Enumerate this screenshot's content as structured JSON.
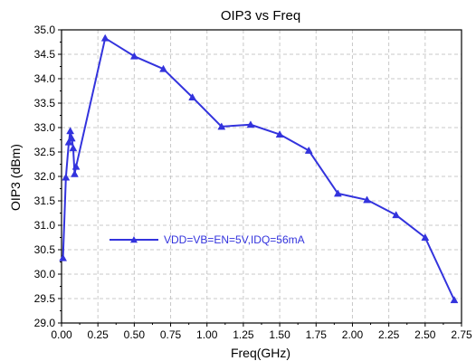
{
  "chart_data": {
    "type": "line",
    "title": "OIP3 vs Freq",
    "xlabel": "Freq(GHz)",
    "ylabel": "OIP3 (dBm)",
    "xlim": [
      0,
      2.75
    ],
    "ylim": [
      29.0,
      35.0
    ],
    "x_ticks": [
      "0.00",
      "0.25",
      "0.50",
      "0.75",
      "1.00",
      "1.25",
      "1.50",
      "1.75",
      "2.00",
      "2.25",
      "2.50",
      "2.75"
    ],
    "y_ticks": [
      "29.0",
      "29.5",
      "30.0",
      "30.5",
      "31.0",
      "31.5",
      "32.0",
      "32.5",
      "33.0",
      "33.5",
      "34.0",
      "34.5",
      "35.0"
    ],
    "grid": true,
    "legend_position": "left-middle",
    "series": [
      {
        "name": "VDD=VB=EN=5V,IDQ=56mA",
        "color": "#3333dd",
        "marker": "triangle-up",
        "points": [
          {
            "x": 0.01,
            "y": 30.33
          },
          {
            "x": 0.03,
            "y": 31.98
          },
          {
            "x": 0.05,
            "y": 32.7
          },
          {
            "x": 0.06,
            "y": 32.93
          },
          {
            "x": 0.07,
            "y": 32.78
          },
          {
            "x": 0.08,
            "y": 32.58
          },
          {
            "x": 0.09,
            "y": 32.05
          },
          {
            "x": 0.1,
            "y": 32.2
          },
          {
            "x": 0.3,
            "y": 34.83
          },
          {
            "x": 0.5,
            "y": 34.46
          },
          {
            "x": 0.7,
            "y": 34.2
          },
          {
            "x": 0.9,
            "y": 33.62
          },
          {
            "x": 1.1,
            "y": 33.02
          },
          {
            "x": 1.3,
            "y": 33.06
          },
          {
            "x": 1.5,
            "y": 32.86
          },
          {
            "x": 1.7,
            "y": 32.53
          },
          {
            "x": 1.9,
            "y": 31.65
          },
          {
            "x": 2.1,
            "y": 31.52
          },
          {
            "x": 2.3,
            "y": 31.21
          },
          {
            "x": 2.5,
            "y": 30.75
          },
          {
            "x": 2.7,
            "y": 29.47
          }
        ]
      }
    ]
  }
}
